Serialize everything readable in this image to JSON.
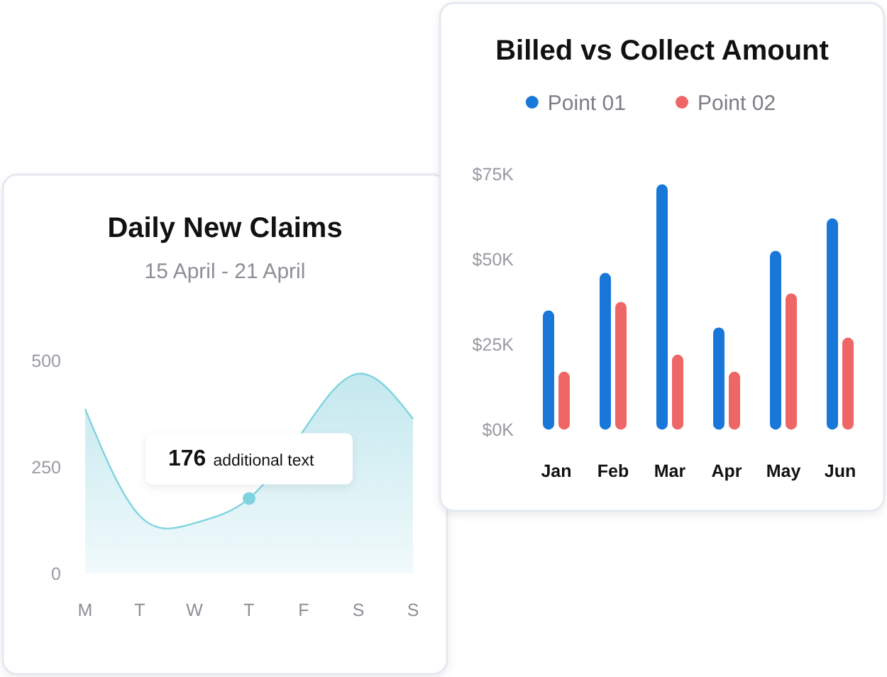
{
  "chart_data": [
    {
      "type": "area",
      "title": "Daily New Claims",
      "subtitle": "15 April - 21 April",
      "categories": [
        "M",
        "T",
        "W",
        "T",
        "F",
        "S",
        "S"
      ],
      "series": [
        {
          "color": "#7fd3e0",
          "values": [
            386,
            135,
            118,
            176,
            336,
            469,
            363
          ]
        }
      ],
      "ylim": [
        0,
        500
      ],
      "yticks": [
        0,
        250,
        500
      ],
      "annotations": [
        "176 additional text"
      ]
    },
    {
      "type": "bar",
      "title": "Billed vs Collect Amount",
      "categories": [
        "Jan",
        "Feb",
        "Mar",
        "Apr",
        "May",
        "Jun"
      ],
      "series": [
        {
          "name": "Point 01",
          "color": "#1877d8",
          "values": [
            35000,
            46000,
            72000,
            30000,
            52500,
            62000
          ]
        },
        {
          "name": "Point 02",
          "color": "#ee6666",
          "values": [
            17000,
            37500,
            22000,
            17000,
            40000,
            27000
          ]
        }
      ],
      "ylim": [
        0,
        75000
      ],
      "yticks": [
        {
          "value": 0,
          "label": "$0K"
        },
        {
          "value": 25000,
          "label": "$25K"
        },
        {
          "value": 50000,
          "label": "$50K"
        },
        {
          "value": 75000,
          "label": "$75K"
        }
      ],
      "legend": "top"
    }
  ]
}
